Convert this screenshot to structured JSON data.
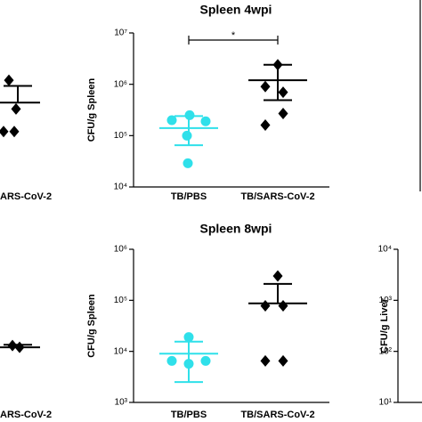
{
  "chart_data": [
    {
      "type": "dotplot",
      "title": "Spleen 4wpi",
      "ylabel": "CFU/g Spleen",
      "log_y": true,
      "categories": [
        "TB/PBS",
        "TB/SARS-CoV-2"
      ],
      "ylim": [
        10000,
        10000000
      ],
      "yticks": [
        {
          "value": 10000,
          "label": "10⁴"
        },
        {
          "value": 100000,
          "label": "10⁵"
        },
        {
          "value": 1000000,
          "label": "10⁶"
        },
        {
          "value": 10000000,
          "label": "10⁷"
        }
      ],
      "groups": [
        {
          "color": "#2fe0ea",
          "marker": "circle",
          "values": [
            200000,
            250000,
            190000,
            100000,
            29000
          ],
          "mean": 140000,
          "err_high": 240000,
          "err_low": 65000
        },
        {
          "color": "#000000",
          "marker": "diamond",
          "values": [
            2400000,
            900000,
            700000,
            270000,
            160000
          ],
          "mean": 1200000,
          "err_high": 2400000,
          "err_low": 490000
        }
      ],
      "annotations": [
        {
          "text": "*"
        }
      ]
    },
    {
      "type": "dotplot",
      "title": "Spleen 8wpi",
      "ylabel": "CFU/g Spleen",
      "log_y": true,
      "categories": [
        "TB/PBS",
        "TB/SARS-CoV-2"
      ],
      "ylim": [
        1000,
        1000000
      ],
      "yticks": [
        {
          "value": 1000,
          "label": "10³"
        },
        {
          "value": 10000,
          "label": "10⁴"
        },
        {
          "value": 100000,
          "label": "10⁵"
        },
        {
          "value": 1000000,
          "label": "10⁶"
        }
      ],
      "groups": [
        {
          "color": "#2fe0ea",
          "marker": "circle",
          "values": [
            19000,
            6500,
            6500,
            5700
          ],
          "mean": 9000,
          "err_high": 15500,
          "err_low": 2500
        },
        {
          "color": "#000000",
          "marker": "diamond",
          "values": [
            300000,
            78000,
            78000,
            6500,
            6500
          ],
          "mean": 87000,
          "err_high": 210000,
          "err_low": null
        }
      ]
    },
    {
      "type": "dotplot",
      "ylabel": "CFU/g Liver",
      "log_y": true,
      "ylim": [
        10,
        10000
      ],
      "yticks": [
        {
          "value": 10,
          "label": "10¹"
        },
        {
          "value": 100,
          "label": "10²"
        },
        {
          "value": 1000,
          "label": "10³"
        },
        {
          "value": 10000,
          "label": "10⁴"
        }
      ]
    },
    {
      "type": "dotplot",
      "log_y": true,
      "categories": [
        "ARS-CoV-2"
      ],
      "ylim": [
        10000,
        10000000
      ],
      "groups": [
        {
          "color": "#000000",
          "marker": "diamond",
          "values": [
            1200000,
            330000,
            120000,
            120000
          ],
          "mean": 440000,
          "err_high": 930000,
          "err_low": null
        }
      ]
    },
    {
      "type": "dotplot",
      "log_y": true,
      "categories": [
        "ARS-CoV-2"
      ],
      "ylim": [
        1000,
        1000000
      ],
      "groups": [
        {
          "color": "#000000",
          "marker": "diamond",
          "values": [
            13000,
            12000
          ],
          "mean": 12000,
          "err_high": 13500,
          "err_low": null
        }
      ]
    }
  ]
}
